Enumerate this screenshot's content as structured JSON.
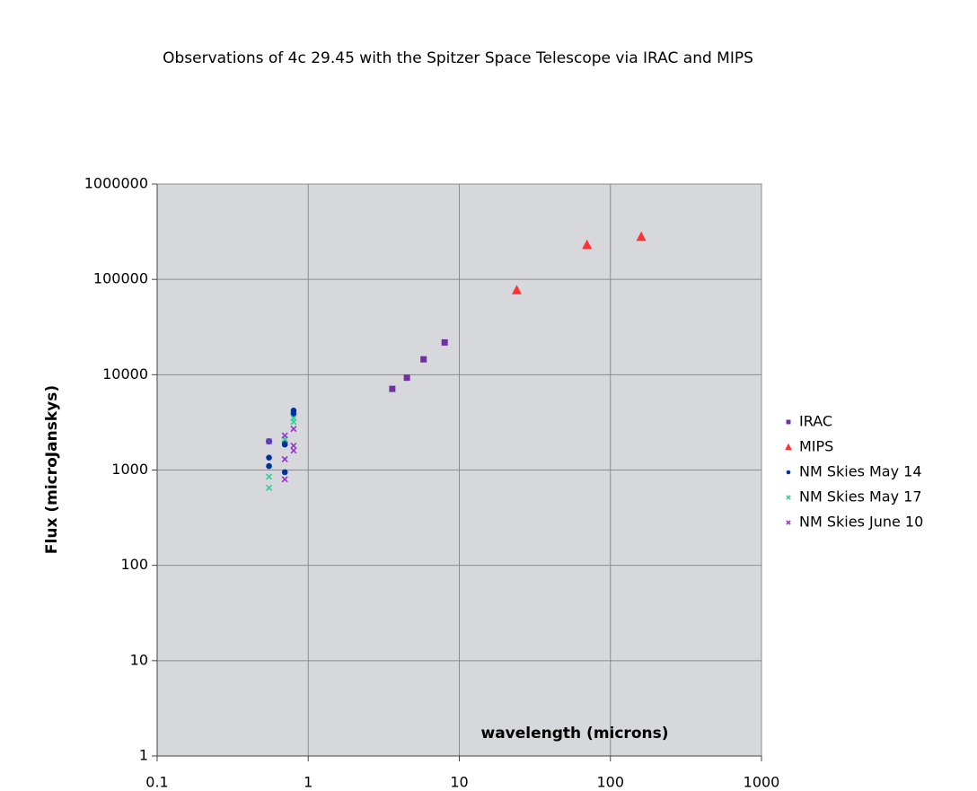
{
  "chart_data": {
    "type": "scatter",
    "title": "Observations of 4c 29.45 with the Spitzer Space Telescope via IRAC and MIPS",
    "x_label": "wavelength (microns)",
    "y_label": "Flux (microJanskys)",
    "xscale": "log",
    "yscale": "log",
    "xlim": [
      0.1,
      1000
    ],
    "ylim": [
      1,
      1000000
    ],
    "xticks": [
      0.1,
      1,
      10,
      100,
      1000
    ],
    "yticks": [
      1,
      10,
      100,
      1000,
      10000,
      100000,
      1000000
    ],
    "grid": true,
    "legend": "right",
    "series": [
      {
        "name": "IRAC",
        "color": "#7030a0",
        "marker": "square",
        "x": [
          3.6,
          4.5,
          5.8,
          8.0
        ],
        "values": [
          7100,
          9300,
          14500,
          21800
        ]
      },
      {
        "name": "MIPS",
        "color": "#ff3333",
        "marker": "triangle",
        "x": [
          24,
          70,
          160
        ],
        "values": [
          77000,
          230000,
          280000
        ]
      },
      {
        "name": "NM Skies May 14",
        "color": "#003399",
        "marker": "circle",
        "x": [
          0.55,
          0.55,
          0.55,
          0.7,
          0.7,
          0.7,
          0.8,
          0.8
        ],
        "values": [
          2000,
          1350,
          1100,
          1950,
          1850,
          950,
          4200,
          3900
        ]
      },
      {
        "name": "NM Skies May 17",
        "color": "#33cc99",
        "marker": "x",
        "x": [
          0.55,
          0.55,
          0.7,
          0.8,
          0.8
        ],
        "values": [
          850,
          650,
          2100,
          3500,
          3200
        ]
      },
      {
        "name": "NM Skies June 10",
        "color": "#9933cc",
        "marker": "x",
        "x": [
          0.55,
          0.7,
          0.7,
          0.7,
          0.8,
          0.8,
          0.8
        ],
        "values": [
          2000,
          2300,
          1300,
          800,
          2700,
          1800,
          1600
        ]
      }
    ]
  }
}
